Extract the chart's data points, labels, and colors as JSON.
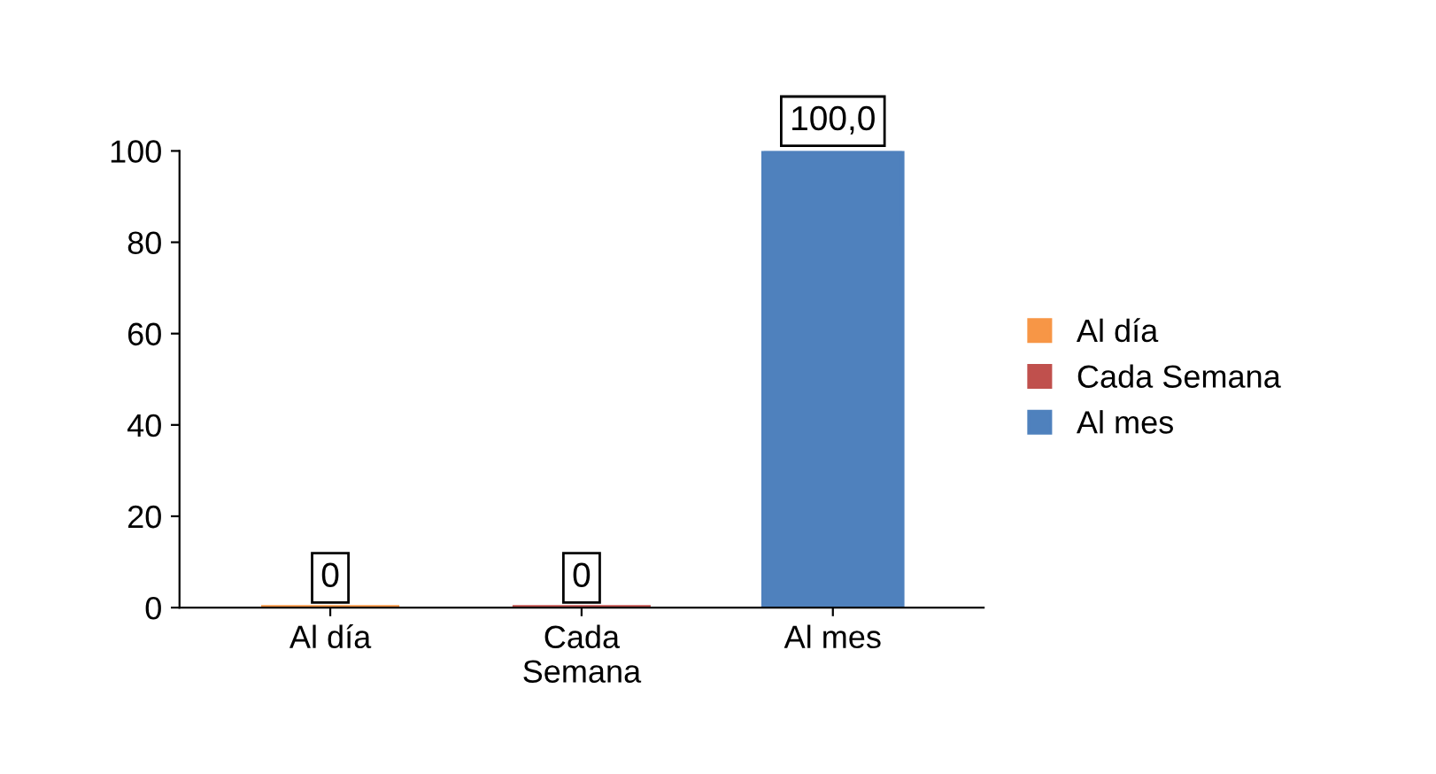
{
  "chart_data": {
    "type": "bar",
    "categories": [
      "Al día",
      "Cada\nSemana",
      "Al mes"
    ],
    "series": [
      {
        "name": "Al día",
        "color": "#f79646",
        "values": [
          0,
          null,
          null
        ],
        "value_labels": [
          "0",
          null,
          null
        ]
      },
      {
        "name": "Cada Semana",
        "color": "#c0504d",
        "values": [
          null,
          0,
          null
        ],
        "value_labels": [
          null,
          "0",
          null
        ]
      },
      {
        "name": "Al mes",
        "color": "#4f81bd",
        "values": [
          null,
          null,
          100
        ],
        "value_labels": [
          null,
          null,
          "100,0"
        ]
      }
    ],
    "ylim": [
      0,
      100
    ],
    "yticks": [
      0,
      20,
      40,
      60,
      80,
      100
    ],
    "grid": false,
    "legend": "right"
  }
}
